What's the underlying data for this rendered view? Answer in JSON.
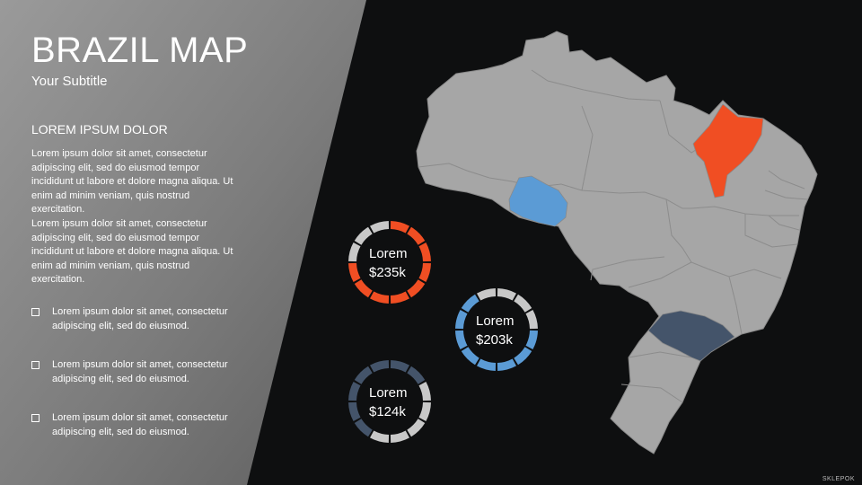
{
  "slide": {
    "title": "BRAZIL MAP",
    "subtitle": "Your Subtitle",
    "section_heading": "LOREM IPSUM DOLOR",
    "body_paragraphs": [
      "Lorem ipsum dolor sit amet, consectetur adipiscing elit, sed do eiusmod tempor incididunt ut labore et dolore magna aliqua. Ut enim ad minim veniam, quis nostrud exercitation.",
      "Lorem ipsum dolor sit amet, consectetur adipiscing elit, sed do eiusmod tempor incididunt ut labore et dolore magna aliqua. Ut enim ad minim veniam, quis nostrud exercitation."
    ],
    "bullets": [
      "Lorem ipsum dolor sit amet, consectetur adipiscing elit, sed do eiusmod.",
      "Lorem ipsum dolor sit amet, consectetur adipiscing elit, sed do eiusmod.",
      "Lorem ipsum dolor sit amet, consectetur adipiscing elit, sed do eiusmod."
    ],
    "brand": "SKLEPOK"
  },
  "rings": [
    {
      "label": "Lorem",
      "value": "$235k",
      "color": "#f04e23"
    },
    {
      "label": "Lorem",
      "value": "$203k",
      "color": "#5b9bd5"
    },
    {
      "label": "Lorem",
      "value": "$124k",
      "color": "#44546a"
    }
  ],
  "colors": {
    "background": "#0e0f10",
    "panel": "#8f8f8f",
    "map_base": "#a6a6a6",
    "highlight_orange": "#f04e23",
    "highlight_blue": "#5b9bd5",
    "highlight_navy": "#44546a",
    "ring_track": "#c8c8c8"
  }
}
